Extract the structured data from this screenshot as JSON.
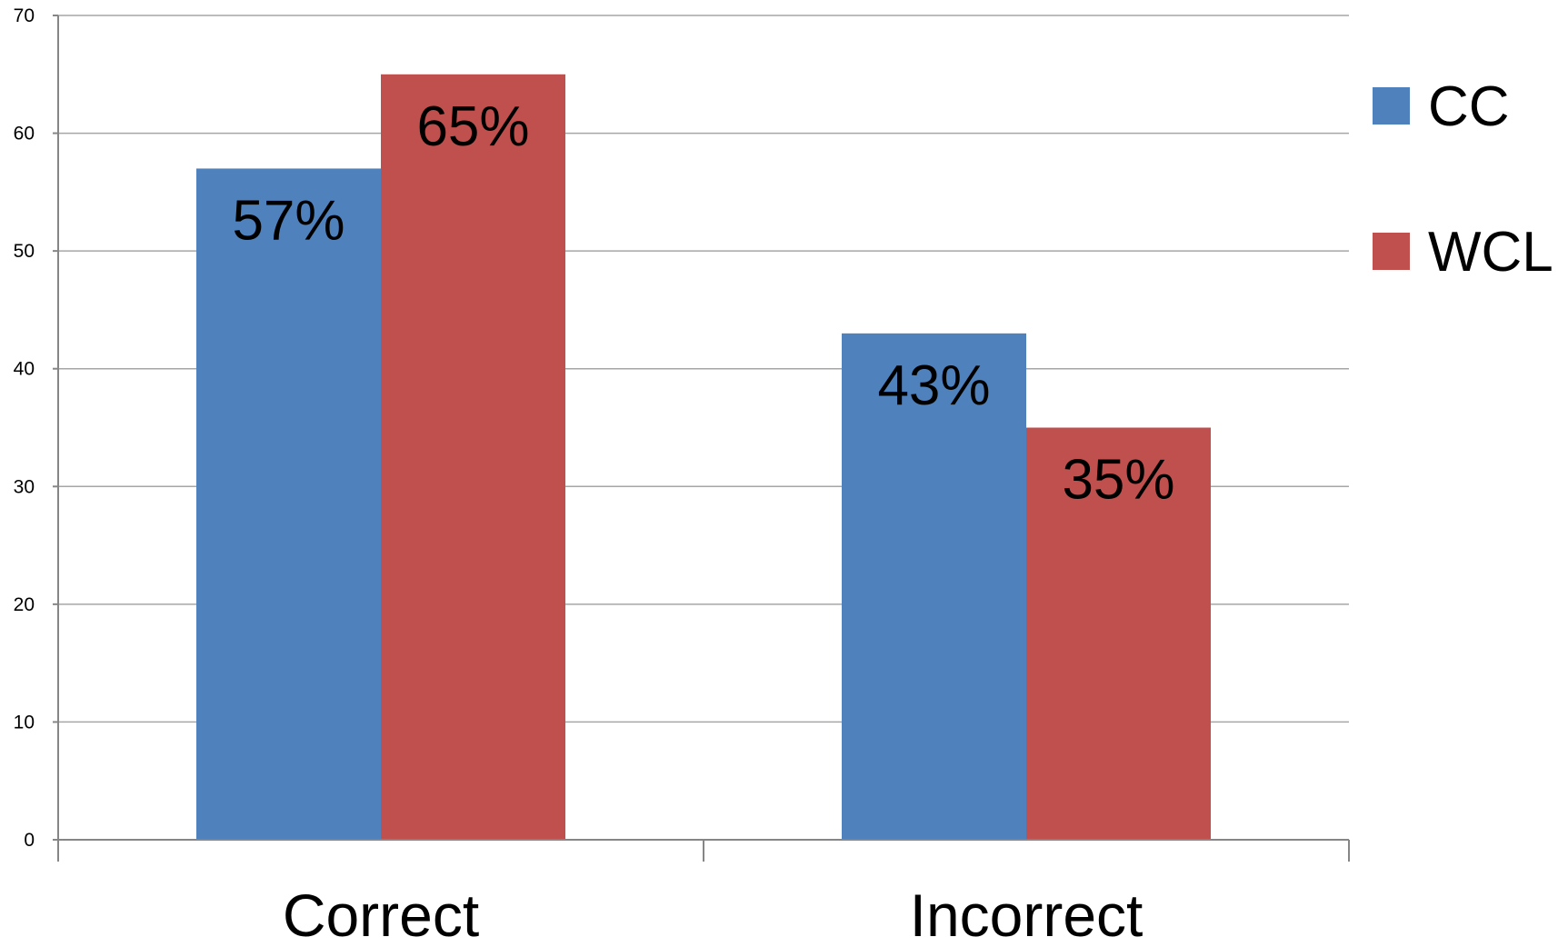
{
  "chart_data": {
    "type": "bar",
    "categories": [
      "Correct",
      "Incorrect"
    ],
    "series": [
      {
        "name": "CC",
        "values": [
          57,
          43
        ],
        "labels": [
          "57%",
          "43%"
        ],
        "color": "#4F81BD"
      },
      {
        "name": "WCL",
        "values": [
          65,
          35
        ],
        "labels": [
          "65%",
          "35%"
        ],
        "color": "#C0504D"
      }
    ],
    "ylim": [
      0,
      70
    ],
    "yticks": [
      0,
      10,
      20,
      30,
      40,
      50,
      60,
      70
    ],
    "grid": true,
    "legend_position": "right",
    "title": "",
    "xlabel": "",
    "ylabel": ""
  },
  "colors": {
    "gridline": "#A6A6A6",
    "axis": "#868686"
  }
}
